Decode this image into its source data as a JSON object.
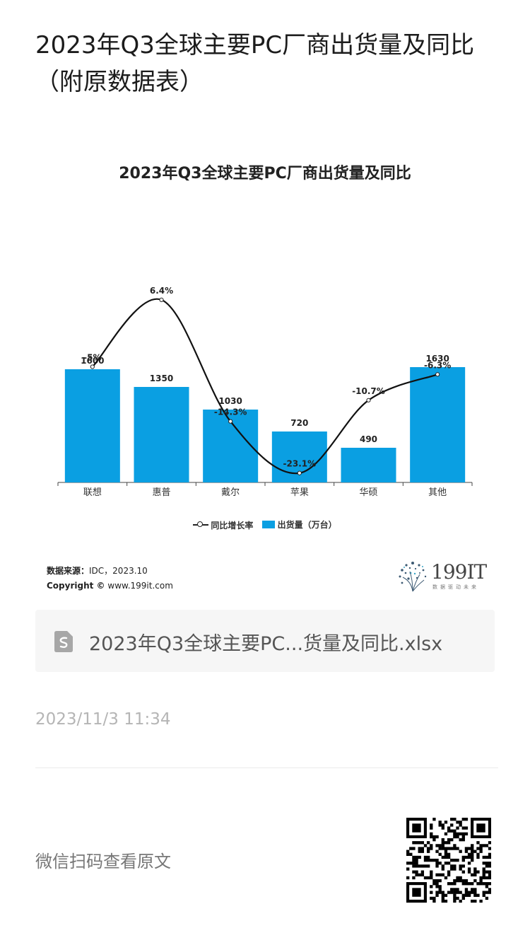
{
  "article": {
    "title": "2023年Q3全球主要PC厂商出货量及同比（附原数据表）"
  },
  "chart_data": {
    "type": "bar",
    "title": "2023年Q3全球主要PC厂商出货量及同比",
    "categories": [
      "联想",
      "惠普",
      "戴尔",
      "苹果",
      "华硕",
      "其他"
    ],
    "series": [
      {
        "name": "出货量（万台）",
        "type": "bar",
        "values": [
          1600,
          1350,
          1030,
          720,
          490,
          1630
        ],
        "labels": [
          "1600",
          "1350",
          "1030",
          "720",
          "490",
          "1630"
        ],
        "color": "#0a9fe2"
      },
      {
        "name": "同比增长率",
        "type": "line",
        "values": [
          -5,
          6.4,
          -14.3,
          -23.1,
          -10.7,
          -6.3
        ],
        "labels": [
          "-5%",
          "6.4%",
          "-14.3%",
          "-23.1%",
          "-10.7%",
          "-6.3%"
        ],
        "color": "#111111"
      }
    ],
    "legend": {
      "line_label": "同比增长率",
      "bar_label": "出货量（万台）",
      "position": "bottom"
    },
    "grid": false
  },
  "source": {
    "label": "数据来源：",
    "value": "IDC，2023.10",
    "copyright_label": "Copyright ©",
    "copyright_value": "www.199it.com"
  },
  "brand": {
    "name": "199IT",
    "slogan": "数据驱动未来"
  },
  "attachment": {
    "icon": "spreadsheet-file-icon",
    "file_name": "2023年Q3全球主要PC...货量及同比.xlsx"
  },
  "timestamp": "2023/11/3 11:34",
  "footer": {
    "qr_prompt": "微信扫码查看原文",
    "qr_icon": "qr-code-icon"
  }
}
